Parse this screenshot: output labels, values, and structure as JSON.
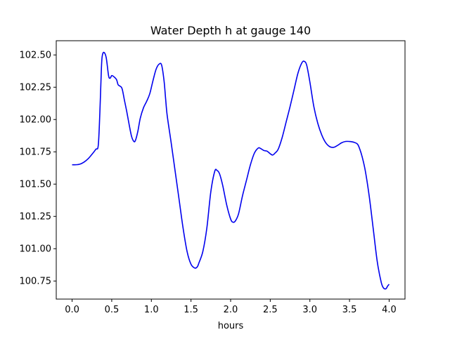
{
  "chart_data": {
    "type": "line",
    "title": "Water Depth h at gauge 140",
    "xlabel": "hours",
    "ylabel": "",
    "xlim": [
      -0.2,
      4.2
    ],
    "ylim": [
      100.61,
      102.61
    ],
    "grid": false,
    "xticks": [
      0.0,
      0.5,
      1.0,
      1.5,
      2.0,
      2.5,
      3.0,
      3.5,
      4.0
    ],
    "xtick_labels": [
      "0.0",
      "0.5",
      "1.0",
      "1.5",
      "2.0",
      "2.5",
      "3.0",
      "3.5",
      "4.0"
    ],
    "yticks": [
      100.75,
      101.0,
      101.25,
      101.5,
      101.75,
      102.0,
      102.25,
      102.5
    ],
    "ytick_labels": [
      "100.75",
      "101.00",
      "101.25",
      "101.50",
      "101.75",
      "102.00",
      "102.25",
      "102.50"
    ],
    "series": [
      {
        "color": "#0000ee",
        "x": [
          0.0,
          0.05,
          0.1,
          0.15,
          0.2,
          0.25,
          0.3,
          0.33,
          0.35,
          0.37,
          0.38,
          0.4,
          0.43,
          0.46,
          0.48,
          0.5,
          0.53,
          0.56,
          0.58,
          0.6,
          0.63,
          0.66,
          0.69,
          0.72,
          0.75,
          0.78,
          0.8,
          0.83,
          0.86,
          0.9,
          0.94,
          0.98,
          1.02,
          1.06,
          1.1,
          1.13,
          1.16,
          1.18,
          1.2,
          1.25,
          1.3,
          1.35,
          1.4,
          1.45,
          1.5,
          1.55,
          1.58,
          1.6,
          1.65,
          1.7,
          1.75,
          1.8,
          1.83,
          1.86,
          1.9,
          1.95,
          2.0,
          2.03,
          2.06,
          2.1,
          2.15,
          2.2,
          2.25,
          2.3,
          2.35,
          2.38,
          2.42,
          2.46,
          2.5,
          2.53,
          2.56,
          2.6,
          2.65,
          2.7,
          2.75,
          2.8,
          2.85,
          2.9,
          2.93,
          2.96,
          3.0,
          3.05,
          3.1,
          3.15,
          3.2,
          3.25,
          3.3,
          3.35,
          3.4,
          3.45,
          3.5,
          3.55,
          3.6,
          3.63,
          3.66,
          3.7,
          3.75,
          3.8,
          3.85,
          3.9,
          3.93,
          3.96,
          3.98,
          4.0
        ],
        "y": [
          101.65,
          101.65,
          101.655,
          101.67,
          101.695,
          101.73,
          101.77,
          101.8,
          102.05,
          102.4,
          102.49,
          102.52,
          102.48,
          102.34,
          102.32,
          102.34,
          102.33,
          102.31,
          102.27,
          102.26,
          102.24,
          102.15,
          102.06,
          101.96,
          101.87,
          101.83,
          101.84,
          101.91,
          102.01,
          102.09,
          102.14,
          102.2,
          102.3,
          102.39,
          102.43,
          102.42,
          102.3,
          102.16,
          102.03,
          101.82,
          101.6,
          101.38,
          101.16,
          100.98,
          100.88,
          100.85,
          100.86,
          100.89,
          100.98,
          101.16,
          101.44,
          101.6,
          101.605,
          101.58,
          101.49,
          101.34,
          101.23,
          101.205,
          101.215,
          101.27,
          101.41,
          101.53,
          101.65,
          101.74,
          101.78,
          101.775,
          101.76,
          101.755,
          101.735,
          101.725,
          101.74,
          101.77,
          101.86,
          101.98,
          102.1,
          102.23,
          102.36,
          102.44,
          102.45,
          102.42,
          102.29,
          102.1,
          101.97,
          101.88,
          101.82,
          101.79,
          101.785,
          101.8,
          101.82,
          101.83,
          101.83,
          101.825,
          101.81,
          101.77,
          101.71,
          101.6,
          101.4,
          101.15,
          100.9,
          100.74,
          100.695,
          100.69,
          100.71,
          100.725
        ]
      }
    ]
  }
}
